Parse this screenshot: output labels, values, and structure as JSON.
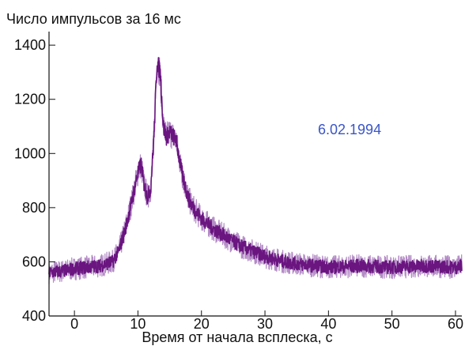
{
  "chart_data": {
    "type": "line",
    "ylabel": "Число импульсов за 16 мс",
    "xlabel": "Время от начала всплеска, с",
    "annotation": "6.02.1994",
    "colors": {
      "series": "#6a1580",
      "series_light": "#b48cc6",
      "annotation": "#3a55c8",
      "axis": "#111111"
    },
    "xlim": [
      -4,
      61
    ],
    "ylim": [
      400,
      1450
    ],
    "x_ticks": [
      0,
      10,
      20,
      30,
      40,
      50,
      60
    ],
    "x_tick_labels": [
      "0",
      "10",
      "20",
      "30",
      "40",
      "50",
      "60"
    ],
    "y_ticks": [
      400,
      600,
      800,
      1000,
      1200,
      1400
    ],
    "y_tick_labels": [
      "400",
      "600",
      "800",
      "1000",
      "1200",
      "1400"
    ],
    "series": [
      {
        "x": [
          -4,
          -2,
          0,
          2,
          4,
          6,
          7,
          8,
          9,
          10,
          10.5,
          11,
          11.5,
          12,
          12.5,
          13,
          13.5,
          14,
          14.5,
          15,
          16,
          17,
          18,
          19,
          20,
          22,
          24,
          26,
          28,
          30,
          33,
          36,
          40,
          45,
          50,
          55,
          60,
          61
        ],
        "values": [
          560,
          565,
          575,
          580,
          585,
          600,
          640,
          720,
          820,
          930,
          960,
          880,
          840,
          870,
          1050,
          1340,
          1300,
          1100,
          1060,
          1080,
          1050,
          920,
          830,
          790,
          760,
          720,
          690,
          660,
          640,
          620,
          600,
          590,
          580,
          585,
          580,
          585,
          580,
          585
        ]
      }
    ]
  }
}
